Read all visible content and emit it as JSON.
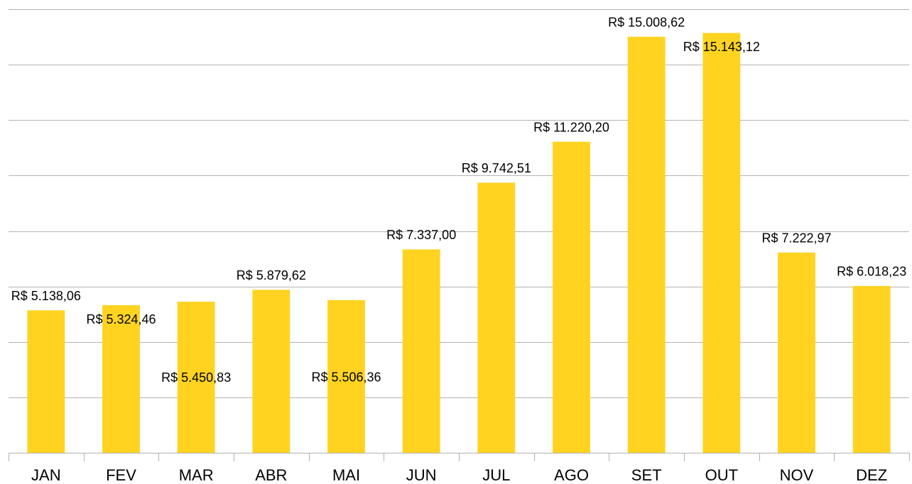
{
  "chart_data": {
    "type": "bar",
    "categories": [
      "JAN",
      "FEV",
      "MAR",
      "ABR",
      "MAI",
      "JUN",
      "JUL",
      "AGO",
      "SET",
      "OUT",
      "NOV",
      "DEZ"
    ],
    "values": [
      5138.06,
      5324.46,
      5450.83,
      5879.62,
      5506.36,
      7337.0,
      9742.51,
      11220.2,
      15008.62,
      15143.12,
      7222.97,
      6018.23
    ],
    "value_labels": [
      "R$ 5.138,06",
      "R$ 5.324,46",
      "R$ 5.450,83",
      "R$ 5.879,62",
      "R$ 5.506,36",
      "R$ 7.337,00",
      "R$ 9.742,51",
      "R$ 11.220,20",
      "R$ 15.008,62",
      "R$ 15.143,12",
      "R$ 7.222,97",
      "R$ 6.018,23"
    ],
    "color": "#ffd320",
    "ylim": [
      0,
      16000
    ],
    "yticks": [
      0,
      2000,
      4000,
      6000,
      8000,
      10000,
      12000,
      14000,
      16000
    ],
    "grid": true
  }
}
